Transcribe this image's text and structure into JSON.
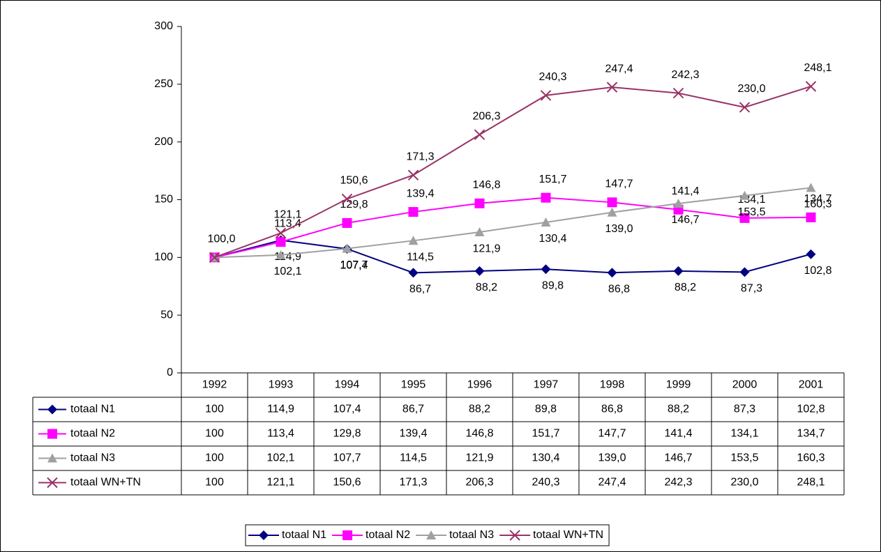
{
  "chart_data": {
    "type": "line",
    "categories": [
      "1992",
      "1993",
      "1994",
      "1995",
      "1996",
      "1997",
      "1998",
      "1999",
      "2000",
      "2001"
    ],
    "ylim": [
      0,
      300
    ],
    "yticks": [
      0,
      50,
      100,
      150,
      200,
      250,
      300
    ],
    "grid": false,
    "legend": "bottom",
    "series": [
      {
        "name": "totaal N1",
        "color": "#000080",
        "marker": "diamond",
        "label_position": "below",
        "values": [
          100,
          114.9,
          107.4,
          86.7,
          88.2,
          89.8,
          86.8,
          88.2,
          87.3,
          102.8
        ],
        "value_labels": [
          null,
          "114,9",
          "107,4",
          "86,7",
          "88,2",
          "89,8",
          "86,8",
          "88,2",
          "87,3",
          "102,8"
        ],
        "table_labels": [
          "100",
          "114,9",
          "107,4",
          "86,7",
          "88,2",
          "89,8",
          "86,8",
          "88,2",
          "87,3",
          "102,8"
        ]
      },
      {
        "name": "totaal N2",
        "color": "#ff00ff",
        "marker": "square",
        "label_position": "above",
        "values": [
          100,
          113.4,
          129.8,
          139.4,
          146.8,
          151.7,
          147.7,
          141.4,
          134.1,
          134.7
        ],
        "value_labels": [
          null,
          "113,4",
          "129,8",
          "139,4",
          "146,8",
          "151,7",
          "147,7",
          "141,4",
          "134,1",
          "134,7"
        ],
        "table_labels": [
          "100",
          "113,4",
          "129,8",
          "139,4",
          "146,8",
          "151,7",
          "147,7",
          "141,4",
          "134,1",
          "134,7"
        ]
      },
      {
        "name": "totaal N3",
        "color": "#a0a0a0",
        "marker": "triangle",
        "label_position": "below",
        "values": [
          100,
          102.1,
          107.7,
          114.5,
          121.9,
          130.4,
          139.0,
          146.7,
          153.5,
          160.3
        ],
        "value_labels": [
          null,
          "102,1",
          "107,7",
          "114,5",
          "121,9",
          "130,4",
          "139,0",
          "146,7",
          "153,5",
          "160,3"
        ],
        "table_labels": [
          "100",
          "102,1",
          "107,7",
          "114,5",
          "121,9",
          "130,4",
          "139,0",
          "146,7",
          "153,5",
          "160,3"
        ]
      },
      {
        "name": "totaal WN+TN",
        "color": "#993366",
        "marker": "x",
        "label_position": "above",
        "values": [
          100,
          121.1,
          150.6,
          171.3,
          206.3,
          240.3,
          247.4,
          242.3,
          230.0,
          248.1
        ],
        "value_labels": [
          "100,0",
          "121,1",
          "150,6",
          "171,3",
          "206,3",
          "240,3",
          "247,4",
          "242,3",
          "230,0",
          "248,1"
        ],
        "table_labels": [
          "100",
          "121,1",
          "150,6",
          "171,3",
          "206,3",
          "240,3",
          "247,4",
          "242,3",
          "230,0",
          "248,1"
        ]
      }
    ]
  }
}
